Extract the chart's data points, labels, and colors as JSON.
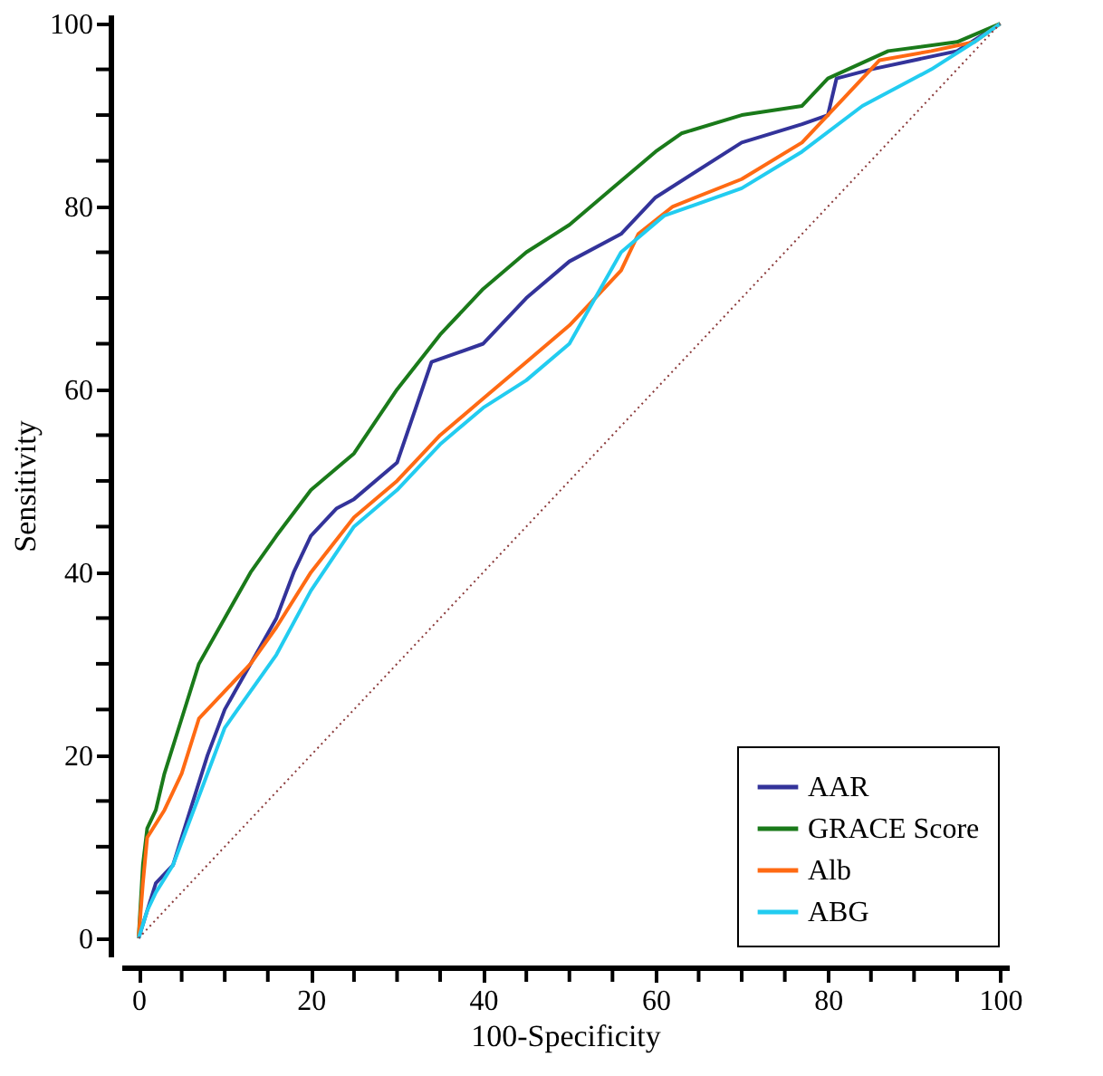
{
  "chart_data": {
    "type": "line",
    "xlabel": "100-Specificity",
    "ylabel": "Sensitivity",
    "xlim": [
      -2,
      101
    ],
    "ylim": [
      -2,
      101
    ],
    "xticks": [
      0,
      {
        "value": 5,
        "label": null
      },
      {
        "value": 10,
        "label": null
      },
      {
        "value": 15,
        "label": null
      },
      20,
      {
        "value": 25,
        "label": null
      },
      {
        "value": 30,
        "label": null
      },
      {
        "value": 35,
        "label": null
      },
      40,
      {
        "value": 45,
        "label": null
      },
      {
        "value": 50,
        "label": null
      },
      {
        "value": 55,
        "label": null
      },
      60,
      {
        "value": 65,
        "label": null
      },
      {
        "value": 70,
        "label": null
      },
      {
        "value": 75,
        "label": null
      },
      80,
      {
        "value": 85,
        "label": null
      },
      {
        "value": 90,
        "label": null
      },
      {
        "value": 95,
        "label": null
      },
      100
    ],
    "yticks": [
      0,
      {
        "value": 5,
        "label": null
      },
      {
        "value": 10,
        "label": null
      },
      {
        "value": 15,
        "label": null
      },
      20,
      {
        "value": 25,
        "label": null
      },
      {
        "value": 30,
        "label": null
      },
      {
        "value": 35,
        "label": null
      },
      40,
      {
        "value": 45,
        "label": null
      },
      {
        "value": 50,
        "label": null
      },
      {
        "value": 55,
        "label": null
      },
      60,
      {
        "value": 65,
        "label": null
      },
      {
        "value": 70,
        "label": null
      },
      {
        "value": 75,
        "label": null
      },
      80,
      {
        "value": 85,
        "label": null
      },
      {
        "value": 90,
        "label": null
      },
      {
        "value": 95,
        "label": null
      },
      100
    ],
    "grid": false,
    "legend": "bottom right",
    "marker": "none",
    "line_style": "solid",
    "series": [
      {
        "name": "AAR",
        "color": "#33339a",
        "x": [
          0,
          1,
          2,
          4,
          6,
          8,
          10,
          13,
          16,
          18,
          20,
          23,
          25,
          30,
          34,
          40,
          45,
          50,
          56,
          60,
          70,
          77,
          80,
          81,
          85,
          90,
          95,
          100
        ],
        "values": [
          0,
          3,
          6,
          8,
          14,
          20,
          25,
          30,
          35,
          40,
          44,
          47,
          48,
          52,
          63,
          65,
          70,
          74,
          77,
          81,
          87,
          89,
          90,
          94,
          95,
          96,
          97,
          100
        ]
      },
      {
        "name": "GRACE Score",
        "color": "#1a7a1a",
        "x": [
          0,
          0.5,
          1,
          2,
          3,
          5,
          7,
          10,
          13,
          16,
          20,
          25,
          30,
          35,
          40,
          45,
          50,
          55,
          60,
          63,
          70,
          77,
          80,
          87,
          95,
          100
        ],
        "values": [
          0,
          8,
          12,
          14,
          18,
          24,
          30,
          35,
          40,
          44,
          49,
          53,
          60,
          66,
          71,
          75,
          78,
          82,
          86,
          88,
          90,
          91,
          94,
          97,
          98,
          100
        ]
      },
      {
        "name": "Alb",
        "color": "#ff6a13",
        "x": [
          0,
          0.5,
          1,
          3,
          5,
          7,
          10,
          13,
          16,
          20,
          25,
          30,
          35,
          40,
          45,
          50,
          56,
          58,
          62,
          70,
          77,
          82,
          86,
          92,
          97,
          100
        ],
        "values": [
          0,
          6,
          11,
          14,
          18,
          24,
          27,
          30,
          34,
          40,
          46,
          50,
          55,
          59,
          63,
          67,
          73,
          77,
          80,
          83,
          87,
          92,
          96,
          97,
          98,
          100
        ]
      },
      {
        "name": "ABG",
        "color": "#22ccf0",
        "x": [
          0,
          1,
          2,
          4,
          6,
          8,
          10,
          13,
          16,
          20,
          25,
          30,
          35,
          40,
          45,
          50,
          56,
          61,
          70,
          77,
          84,
          92,
          97,
          100
        ],
        "values": [
          0,
          3,
          5,
          8,
          13,
          18,
          23,
          27,
          31,
          38,
          45,
          49,
          54,
          58,
          61,
          65,
          75,
          79,
          82,
          86,
          91,
          95,
          98,
          100
        ]
      },
      {
        "color": "#8b3a3a",
        "line_style": "dotted",
        "x": [
          0,
          100
        ],
        "values": [
          0,
          100
        ]
      }
    ]
  }
}
